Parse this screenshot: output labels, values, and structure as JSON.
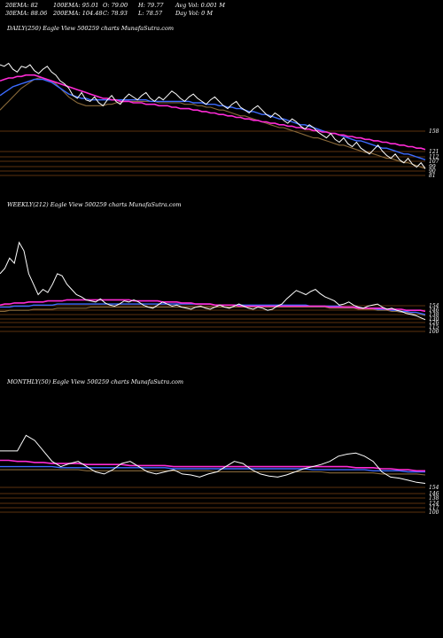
{
  "stats": {
    "ema20": "20EMA: 82",
    "ema30": "30EMA: 88.06",
    "ema100": "100EMA: 95.01",
    "ema200": "200EMA: 104.48",
    "open": "O: 79.00",
    "close": "C: 78.93",
    "high": "H: 79.77",
    "low": "L: 78.57",
    "avg_vol": "Avg Vol: 0.001 M",
    "day_vol": "Day Vol: 0  M"
  },
  "colors": {
    "price": "#ffffff",
    "ema_pink": "#ff2bd6",
    "ema_blue": "#3c6bff",
    "ema_brown": "#8a6a3a",
    "grid": "#b5651d"
  },
  "panels": [
    {
      "title": "DAILY(250) Eagle  View  500259 charts MunafaSutra.com",
      "right_labels": [
        "158",
        "121",
        "112",
        "107",
        "99",
        "90",
        "81"
      ]
    },
    {
      "title": "WEEKLY(212) Eagle  View  500259 charts MunafaSutra.com",
      "right_labels": [
        "154",
        "146",
        "138",
        "130",
        "126",
        "115",
        "100"
      ]
    },
    {
      "title": "MONTHLY(50) Eagle  View  500259 charts MunafaSutra.com",
      "right_labels": [
        "154",
        "146",
        "138",
        "124",
        "117",
        "100"
      ]
    }
  ],
  "chart_data": [
    {
      "type": "line",
      "series": [
        {
          "values": [
            171,
            170,
            172,
            168,
            166,
            170,
            169,
            171,
            167,
            165,
            168,
            170,
            166,
            164,
            160,
            158,
            155,
            150,
            148,
            152,
            147,
            146,
            149,
            145,
            143,
            147,
            150,
            146,
            144,
            148,
            151,
            149,
            147,
            150,
            152,
            148,
            146,
            149,
            147,
            150,
            153,
            151,
            148,
            146,
            149,
            151,
            148,
            146,
            144,
            147,
            149,
            146,
            143,
            141,
            144,
            146,
            142,
            140,
            138,
            141,
            143,
            140,
            137,
            135,
            138,
            136,
            133,
            131,
            134,
            132,
            129,
            127,
            130,
            128,
            125,
            123,
            121,
            124,
            120,
            118,
            121,
            117,
            115,
            118,
            114,
            112,
            110,
            113,
            116,
            112,
            109,
            107,
            110,
            106,
            104,
            107,
            103,
            101,
            104,
            100
          ]
        },
        {
          "values": [
            160,
            161,
            162,
            162,
            163,
            163,
            164,
            164,
            164,
            163,
            162,
            161,
            160,
            159,
            158,
            157,
            156,
            155,
            154,
            153,
            152,
            151,
            150,
            149,
            148,
            148,
            147,
            147,
            146,
            146,
            146,
            145,
            145,
            145,
            144,
            144,
            144,
            143,
            143,
            143,
            142,
            142,
            141,
            141,
            141,
            140,
            140,
            139,
            139,
            138,
            138,
            137,
            137,
            136,
            136,
            135,
            135,
            134,
            134,
            133,
            133,
            132,
            132,
            131,
            131,
            130,
            130,
            129,
            129,
            128,
            128,
            127,
            127,
            126,
            126,
            125,
            125,
            124,
            124,
            123,
            123,
            122,
            122,
            121,
            121,
            120,
            120,
            119,
            119,
            118,
            118,
            117,
            117,
            116,
            116,
            115,
            115,
            114,
            114,
            113
          ]
        },
        {
          "values": [
            150,
            152,
            154,
            156,
            157,
            158,
            159,
            160,
            161,
            161,
            161,
            160,
            159,
            157,
            155,
            153,
            151,
            150,
            149,
            148,
            148,
            147,
            147,
            147,
            147,
            147,
            147,
            147,
            147,
            147,
            147,
            147,
            147,
            147,
            147,
            146,
            146,
            146,
            146,
            146,
            146,
            146,
            146,
            146,
            146,
            145,
            145,
            145,
            144,
            144,
            144,
            143,
            143,
            142,
            142,
            141,
            141,
            140,
            139,
            139,
            138,
            137,
            137,
            136,
            135,
            134,
            134,
            133,
            132,
            131,
            130,
            130,
            129,
            128,
            127,
            126,
            125,
            124,
            124,
            123,
            122,
            121,
            120,
            119,
            119,
            118,
            117,
            116,
            115,
            114,
            114,
            113,
            112,
            111,
            110,
            110,
            109,
            108,
            107,
            106
          ]
        },
        {
          "values": [
            140,
            143,
            146,
            149,
            152,
            155,
            157,
            159,
            161,
            162,
            162,
            161,
            160,
            158,
            155,
            152,
            149,
            147,
            145,
            144,
            143,
            143,
            143,
            143,
            143,
            144,
            144,
            145,
            145,
            146,
            146,
            146,
            146,
            146,
            146,
            146,
            146,
            145,
            145,
            145,
            145,
            145,
            145,
            144,
            144,
            144,
            143,
            143,
            142,
            142,
            141,
            140,
            140,
            139,
            138,
            137,
            136,
            136,
            135,
            134,
            133,
            132,
            131,
            130,
            129,
            128,
            128,
            127,
            126,
            125,
            124,
            123,
            122,
            121,
            121,
            120,
            119,
            118,
            117,
            116,
            116,
            115,
            114,
            113,
            112,
            111,
            111,
            110,
            109,
            108,
            107,
            107,
            106,
            105,
            104,
            104,
            103,
            102,
            101,
            100
          ]
        }
      ],
      "ylim": [
        85,
        185
      ]
    },
    {
      "type": "line",
      "series": [
        {
          "values": [
            160,
            165,
            175,
            170,
            190,
            182,
            160,
            150,
            140,
            145,
            142,
            150,
            160,
            158,
            150,
            145,
            140,
            138,
            135,
            134,
            133,
            136,
            132,
            130,
            129,
            131,
            134,
            133,
            135,
            133,
            130,
            128,
            127,
            130,
            133,
            131,
            129,
            130,
            128,
            127,
            126,
            128,
            129,
            127,
            126,
            128,
            130,
            128,
            127,
            129,
            131,
            129,
            127,
            126,
            128,
            127,
            125,
            126,
            129,
            131,
            136,
            140,
            144,
            142,
            140,
            143,
            145,
            141,
            138,
            136,
            134,
            130,
            131,
            133,
            130,
            128,
            127,
            129,
            130,
            131,
            128,
            126,
            127,
            125,
            124,
            122,
            121,
            120,
            118,
            116
          ]
        },
        {
          "values": [
            130,
            131,
            131,
            132,
            132,
            132,
            133,
            133,
            133,
            133,
            134,
            134,
            134,
            134,
            135,
            135,
            135,
            135,
            135,
            135,
            135,
            135,
            135,
            135,
            135,
            135,
            135,
            135,
            134,
            134,
            134,
            134,
            134,
            134,
            133,
            133,
            133,
            133,
            132,
            132,
            132,
            131,
            131,
            131,
            131,
            130,
            130,
            130,
            130,
            130,
            129,
            129,
            129,
            129,
            129,
            129,
            129,
            129,
            129,
            129,
            129,
            129,
            129,
            129,
            129,
            129,
            129,
            129,
            129,
            128,
            128,
            128,
            128,
            128,
            128,
            127,
            127,
            127,
            127,
            127,
            127,
            126,
            126,
            126,
            126,
            125,
            125,
            125,
            125,
            124
          ]
        },
        {
          "values": [
            128,
            128,
            128,
            129,
            129,
            129,
            129,
            130,
            130,
            130,
            130,
            130,
            131,
            131,
            131,
            131,
            131,
            131,
            131,
            131,
            131,
            131,
            131,
            131,
            131,
            131,
            131,
            131,
            131,
            131,
            131,
            131,
            131,
            131,
            131,
            131,
            131,
            131,
            131,
            131,
            131,
            131,
            131,
            131,
            131,
            130,
            130,
            130,
            130,
            130,
            130,
            130,
            130,
            130,
            130,
            130,
            130,
            130,
            130,
            130,
            130,
            130,
            130,
            130,
            130,
            129,
            129,
            129,
            129,
            129,
            129,
            129,
            128,
            128,
            128,
            128,
            127,
            127,
            127,
            126,
            126,
            126,
            125,
            125,
            124,
            124,
            123,
            123,
            122,
            121
          ]
        },
        {
          "values": [
            124,
            124,
            125,
            125,
            125,
            125,
            125,
            126,
            126,
            126,
            126,
            126,
            127,
            127,
            127,
            127,
            127,
            127,
            127,
            128,
            128,
            128,
            128,
            128,
            128,
            128,
            128,
            128,
            128,
            128,
            128,
            128,
            128,
            128,
            128,
            128,
            128,
            128,
            128,
            128,
            128,
            128,
            128,
            128,
            128,
            128,
            128,
            128,
            128,
            128,
            128,
            128,
            128,
            128,
            128,
            128,
            128,
            128,
            128,
            128,
            128,
            128,
            128,
            128,
            128,
            128,
            128,
            128,
            128,
            127,
            127,
            127,
            127,
            127,
            127,
            126,
            126,
            126,
            126,
            125,
            125,
            125,
            124,
            124,
            123,
            123,
            122,
            121,
            121,
            120
          ]
        }
      ],
      "ylim": [
        70,
        210
      ]
    },
    {
      "type": "line",
      "series": [
        {
          "values": [
            150,
            150,
            150,
            165,
            160,
            150,
            140,
            135,
            138,
            140,
            135,
            130,
            128,
            132,
            138,
            140,
            135,
            130,
            128,
            130,
            132,
            128,
            127,
            125,
            128,
            130,
            135,
            140,
            138,
            132,
            128,
            126,
            125,
            127,
            130,
            133,
            135,
            137,
            140,
            145,
            147,
            148,
            145,
            140,
            130,
            125,
            124,
            122,
            120,
            119
          ]
        },
        {
          "values": [
            141,
            141,
            140,
            140,
            139,
            139,
            138,
            138,
            138,
            138,
            137,
            137,
            137,
            137,
            137,
            136,
            136,
            136,
            136,
            136,
            135,
            135,
            135,
            135,
            135,
            135,
            135,
            135,
            135,
            135,
            135,
            135,
            135,
            135,
            135,
            135,
            135,
            135,
            135,
            135,
            135,
            134,
            134,
            134,
            133,
            133,
            132,
            132,
            131,
            131
          ]
        },
        {
          "values": [
            135,
            135,
            135,
            135,
            135,
            135,
            135,
            134,
            134,
            134,
            134,
            134,
            134,
            134,
            134,
            134,
            134,
            134,
            134,
            134,
            133,
            133,
            133,
            133,
            133,
            133,
            133,
            133,
            133,
            133,
            133,
            133,
            133,
            133,
            133,
            133,
            132,
            132,
            132,
            132,
            132,
            132,
            132,
            131,
            131,
            131,
            131,
            130,
            130,
            130
          ]
        },
        {
          "values": [
            132,
            132,
            132,
            132,
            132,
            132,
            132,
            132,
            132,
            132,
            131,
            131,
            131,
            131,
            131,
            131,
            131,
            131,
            131,
            131,
            131,
            131,
            131,
            131,
            131,
            130,
            130,
            130,
            130,
            130,
            130,
            130,
            130,
            130,
            130,
            130,
            130,
            130,
            129,
            129,
            129,
            129,
            129,
            129,
            128,
            128,
            128,
            128,
            128,
            127
          ]
        }
      ],
      "ylim": [
        60,
        200
      ]
    }
  ]
}
